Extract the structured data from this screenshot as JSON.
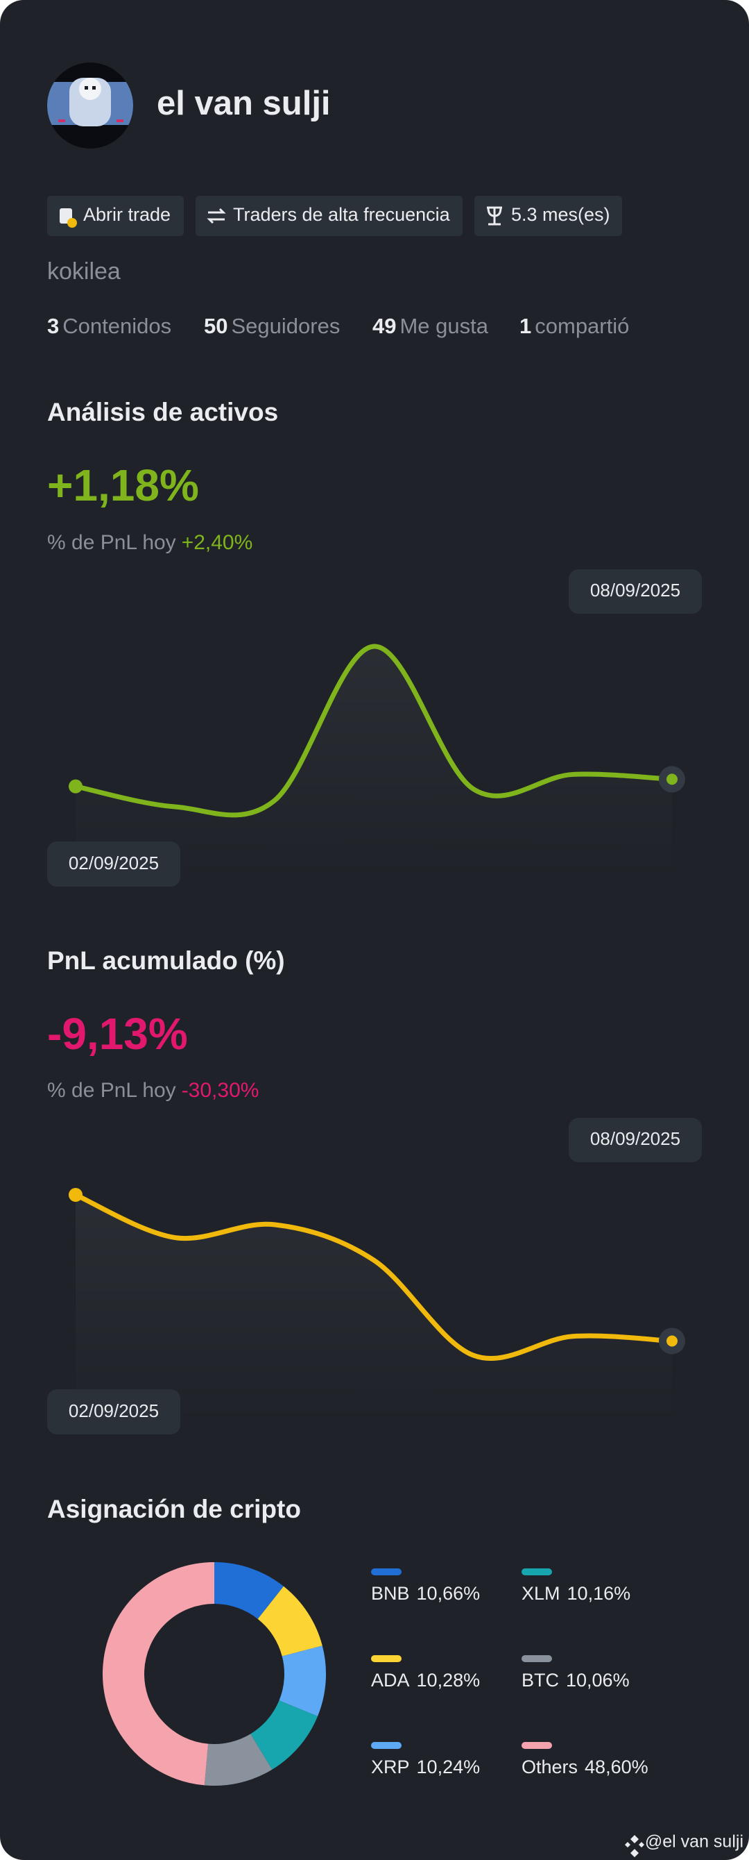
{
  "profile": {
    "name": "el van sulji",
    "tags": [
      "Abrir trade",
      "Traders de alta frecuencia",
      "5.3 mes(es)"
    ],
    "username": "kokilea",
    "stats": [
      {
        "value": 3,
        "label": "Contenidos"
      },
      {
        "value": 50,
        "label": "Seguidores"
      },
      {
        "value": 49,
        "label": "Me gusta"
      },
      {
        "value": 1,
        "label": "compartió"
      }
    ]
  },
  "chart_data": [
    {
      "type": "line",
      "title": "Análisis de activos",
      "headline": "+1,18%",
      "subtitle": "% de PnL hoy",
      "subtitle_value": "+2,40%",
      "color": "#7fb41c",
      "categories": [
        "02/09/2025",
        null,
        null,
        null,
        null,
        null,
        "08/09/2025"
      ],
      "values": [
        0.9,
        0.1,
        0.34,
        6.4,
        0.8,
        1.37,
        1.18
      ]
    },
    {
      "type": "line",
      "title": "PnL acumulado (%)",
      "headline": "-9,13%",
      "subtitle": "% de PnL hoy",
      "subtitle_value": "-30,30%",
      "color": "#f0b90b",
      "headline_color": "#e2186f",
      "categories": [
        "02/09/2025",
        null,
        null,
        null,
        null,
        null,
        "08/09/2025"
      ],
      "values": [
        0,
        -2.67,
        -1.86,
        -4.08,
        -10.02,
        -8.84,
        -9.13
      ]
    },
    {
      "type": "pie",
      "donut": true,
      "title": "Asignación de cripto",
      "categories": [
        "BNB",
        "ADA",
        "XRP",
        "XLM",
        "BTC",
        "Others"
      ],
      "values": [
        10.66,
        10.28,
        10.24,
        10.16,
        10.06,
        48.6
      ],
      "value_labels": [
        "10,66%",
        "10,28%",
        "10,24%",
        "10,16%",
        "10,06%",
        "48,60%"
      ],
      "colors": [
        "#1f6fd6",
        "#fcd535",
        "#5ea9f5",
        "#17a5ae",
        "#8a929e",
        "#f5a3ad"
      ]
    }
  ],
  "footer": "@el van sulji"
}
